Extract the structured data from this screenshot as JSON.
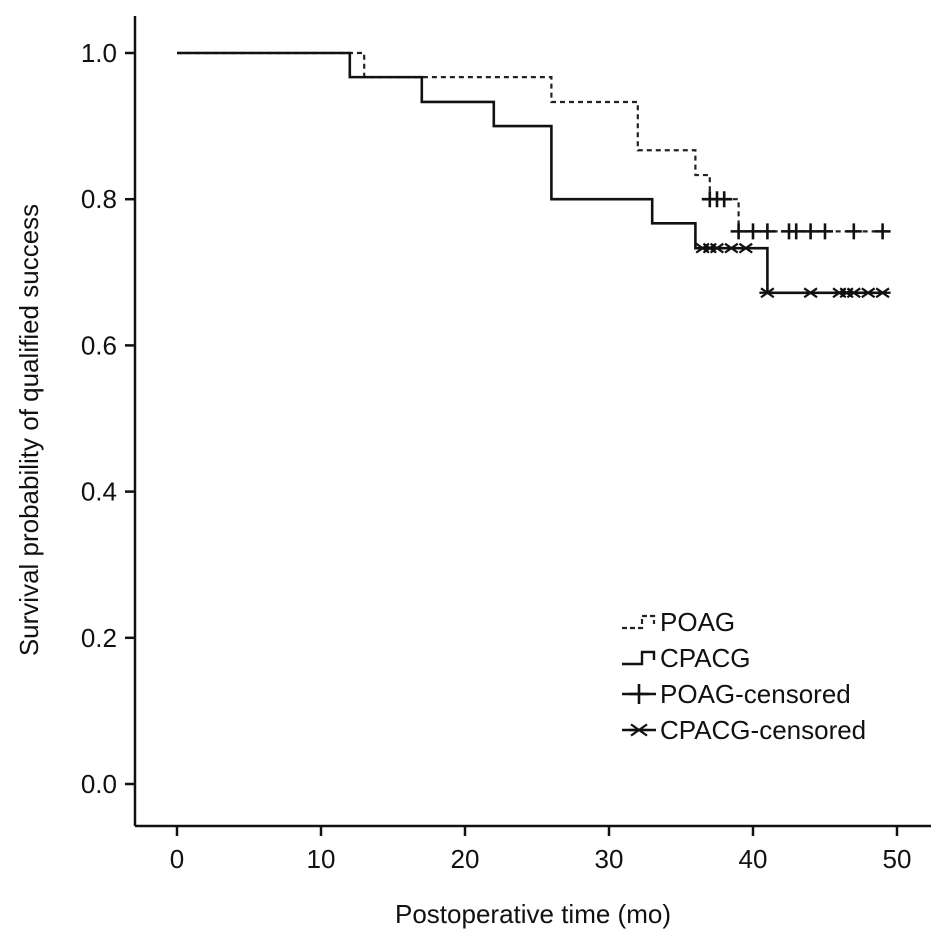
{
  "chart_data": {
    "type": "line",
    "subtype": "kaplan-meier step",
    "title": "",
    "xlabel": "Postoperative time (mo)",
    "ylabel": "Survival probability of qualified success",
    "xlim": [
      0,
      50
    ],
    "ylim": [
      0,
      1
    ],
    "x_ticks": [
      0,
      10,
      20,
      30,
      40,
      50
    ],
    "x_tick_labels": [
      "0",
      "10",
      "20",
      "30",
      "40",
      "50"
    ],
    "y_ticks": [
      0,
      0.2,
      0.4,
      0.6,
      0.8,
      1.0
    ],
    "y_tick_labels": [
      "0.0",
      "0.2",
      "0.4",
      "0.6",
      "0.8",
      "1.0"
    ],
    "grid": false,
    "legend_position": "bottom-right",
    "series": [
      {
        "name": "POAG",
        "line_style": "dashed",
        "color": "#222222",
        "steps": [
          {
            "x": 0,
            "y": 1.0
          },
          {
            "x": 13,
            "y": 0.967
          },
          {
            "x": 26,
            "y": 0.933
          },
          {
            "x": 32,
            "y": 0.867
          },
          {
            "x": 36,
            "y": 0.833
          },
          {
            "x": 37,
            "y": 0.8
          },
          {
            "x": 39,
            "y": 0.756
          }
        ],
        "end_x": 49
      },
      {
        "name": "CPACG",
        "line_style": "solid",
        "color": "#111111",
        "steps": [
          {
            "x": 0,
            "y": 1.0
          },
          {
            "x": 12,
            "y": 0.967
          },
          {
            "x": 17,
            "y": 0.933
          },
          {
            "x": 22,
            "y": 0.9
          },
          {
            "x": 26,
            "y": 0.8
          },
          {
            "x": 33,
            "y": 0.767
          },
          {
            "x": 36,
            "y": 0.733
          },
          {
            "x": 41,
            "y": 0.672
          }
        ],
        "end_x": 49
      }
    ],
    "censored": [
      {
        "name": "POAG-censored",
        "marker": "plus",
        "points": [
          {
            "x": 37,
            "y": 0.8
          },
          {
            "x": 37.5,
            "y": 0.8
          },
          {
            "x": 38,
            "y": 0.8
          },
          {
            "x": 39,
            "y": 0.756
          },
          {
            "x": 40,
            "y": 0.756
          },
          {
            "x": 41,
            "y": 0.756
          },
          {
            "x": 42.5,
            "y": 0.756
          },
          {
            "x": 43,
            "y": 0.756
          },
          {
            "x": 44,
            "y": 0.756
          },
          {
            "x": 45,
            "y": 0.756
          },
          {
            "x": 47,
            "y": 0.756
          },
          {
            "x": 49,
            "y": 0.756
          }
        ]
      },
      {
        "name": "CPACG-censored",
        "marker": "star",
        "points": [
          {
            "x": 36.5,
            "y": 0.733
          },
          {
            "x": 37,
            "y": 0.733
          },
          {
            "x": 37.5,
            "y": 0.733
          },
          {
            "x": 38.5,
            "y": 0.733
          },
          {
            "x": 39.5,
            "y": 0.733
          },
          {
            "x": 41,
            "y": 0.672
          },
          {
            "x": 44,
            "y": 0.672
          },
          {
            "x": 46,
            "y": 0.672
          },
          {
            "x": 46.5,
            "y": 0.672
          },
          {
            "x": 47,
            "y": 0.672
          },
          {
            "x": 48,
            "y": 0.672
          },
          {
            "x": 49,
            "y": 0.672
          }
        ]
      }
    ],
    "legend": {
      "items": [
        {
          "label": "POAG",
          "marker": "dashed-step"
        },
        {
          "label": "CPACG",
          "marker": "solid-step"
        },
        {
          "label": "POAG-censored",
          "marker": "plus"
        },
        {
          "label": "CPACG-censored",
          "marker": "star"
        }
      ]
    }
  }
}
